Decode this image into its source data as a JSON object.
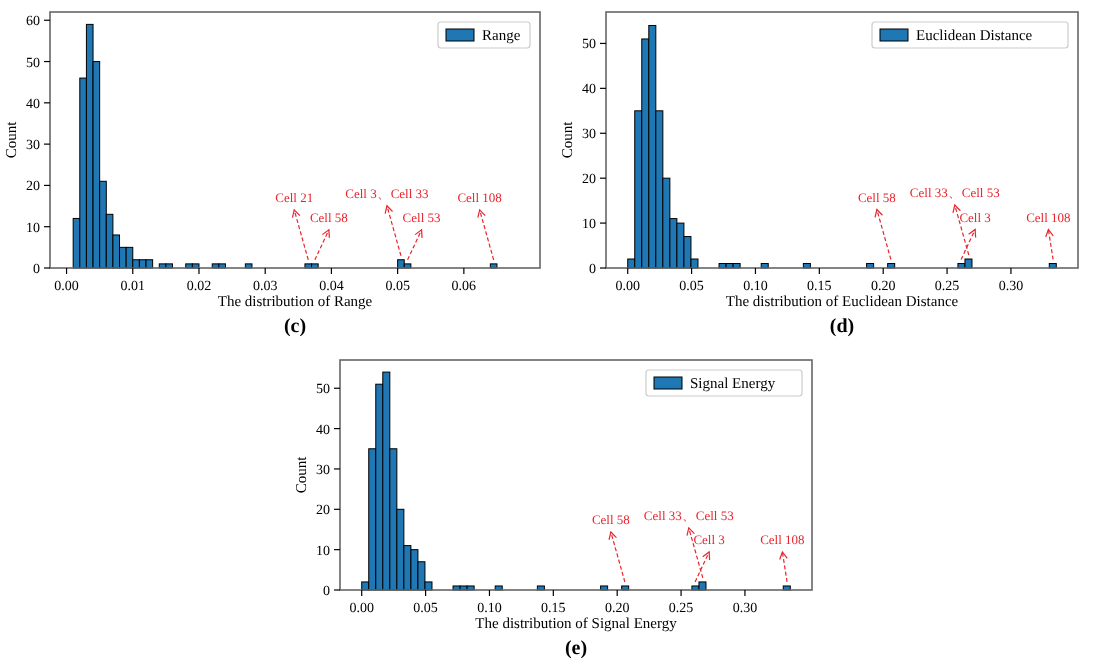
{
  "chart_data": [
    {
      "type": "histogram",
      "title": "(c)",
      "xlabel": "The distribution of Range",
      "ylabel": "Count",
      "legend": "top right",
      "grid": false,
      "series": [
        {
          "name": "Range",
          "color": "#1f77b4",
          "values": [
            12,
            46,
            59,
            50,
            21,
            13,
            8,
            5,
            5,
            2,
            2,
            2,
            0,
            1,
            1,
            0,
            0,
            1,
            1,
            0,
            0,
            1,
            1,
            0,
            0,
            0,
            1,
            0,
            0,
            0,
            0,
            0,
            0,
            0,
            0,
            1,
            1,
            0,
            0,
            0,
            0,
            0,
            0,
            0,
            0,
            0,
            0,
            0,
            0,
            2,
            1,
            0,
            0,
            0,
            0,
            0,
            0,
            0,
            0,
            0,
            0,
            0,
            0,
            1
          ]
        }
      ],
      "bins": [
        0.001,
        0.002,
        0.003,
        0.004,
        0.005,
        0.006,
        0.007,
        0.008,
        0.009,
        0.01,
        0.011,
        0.012,
        0.013,
        0.014,
        0.015,
        0.016,
        0.017,
        0.018,
        0.019,
        0.02,
        0.021,
        0.022,
        0.023,
        0.024,
        0.025,
        0.026,
        0.027,
        0.028,
        0.029,
        0.03,
        0.031,
        0.032,
        0.033,
        0.034,
        0.035,
        0.036,
        0.037,
        0.038,
        0.039,
        0.04,
        0.041,
        0.042,
        0.043,
        0.044,
        0.045,
        0.046,
        0.047,
        0.048,
        0.049,
        0.05,
        0.051,
        0.052,
        0.053,
        0.054,
        0.055,
        0.056,
        0.057,
        0.058,
        0.059,
        0.06,
        0.061,
        0.062,
        0.063,
        0.064,
        0.065
      ],
      "xlim": [
        -0.0025,
        0.0715
      ],
      "ylim": [
        0,
        62
      ],
      "xticks": [
        {
          "value": 0,
          "label": "0.00"
        },
        {
          "value": 0.01,
          "label": "0.01"
        },
        {
          "value": 0.02,
          "label": "0.02"
        },
        {
          "value": 0.03,
          "label": "0.03"
        },
        {
          "value": 0.04,
          "label": "0.04"
        },
        {
          "value": 0.05,
          "label": "0.05"
        },
        {
          "value": 0.06,
          "label": "0.06"
        }
      ],
      "yticks": [
        0,
        10,
        20,
        30,
        40,
        50,
        60
      ],
      "annotations": [
        {
          "text": "Cell 21",
          "x": 0.0365,
          "y": 1
        },
        {
          "text": "Cell 58",
          "x": 0.0375,
          "y": 1
        },
        {
          "text": "Cell 3、Cell 33",
          "x": 0.0505,
          "y": 2
        },
        {
          "text": "Cell 53",
          "x": 0.0515,
          "y": 1
        },
        {
          "text": "Cell 108",
          "x": 0.0645,
          "y": 1
        }
      ]
    },
    {
      "type": "histogram",
      "title": "(d)",
      "xlabel": "The distribution of Euclidean Distance",
      "ylabel": "Count",
      "legend": "top right",
      "grid": false,
      "series": [
        {
          "name": "Euclidean Distance",
          "color": "#1f77b4",
          "values": [
            2,
            35,
            51,
            54,
            35,
            20,
            11,
            10,
            7,
            2,
            0,
            0,
            0,
            1,
            1,
            1,
            0,
            0,
            0,
            1,
            0,
            0,
            0,
            0,
            0,
            1,
            0,
            0,
            0,
            0,
            0,
            0,
            0,
            0,
            1,
            0,
            0,
            1,
            0,
            0,
            0,
            0,
            0,
            0,
            0,
            0,
            0,
            1,
            2,
            0,
            0,
            0,
            0,
            0,
            0,
            0,
            0,
            0,
            0,
            0,
            1
          ]
        }
      ],
      "bins": [
        0,
        0.0055,
        0.011,
        0.0165,
        0.022,
        0.0275,
        0.033,
        0.0385,
        0.044,
        0.0495,
        0.055,
        0.0605,
        0.066,
        0.0715,
        0.077,
        0.0825,
        0.088,
        0.0935,
        0.099,
        0.1045,
        0.11,
        0.1155,
        0.121,
        0.1265,
        0.132,
        0.1375,
        0.143,
        0.1485,
        0.154,
        0.1595,
        0.165,
        0.1705,
        0.176,
        0.1815,
        0.187,
        0.1925,
        0.198,
        0.2035,
        0.209,
        0.2145,
        0.22,
        0.2255,
        0.231,
        0.2365,
        0.242,
        0.2475,
        0.253,
        0.2585,
        0.264,
        0.2695,
        0.275,
        0.2805,
        0.286,
        0.2915,
        0.297,
        0.3025,
        0.308,
        0.3135,
        0.319,
        0.3245,
        0.33,
        0.3355
      ],
      "xlim": [
        -0.017,
        0.3525
      ],
      "ylim": [
        0,
        57
      ],
      "xticks": [
        {
          "value": 0,
          "label": "0.00"
        },
        {
          "value": 0.05,
          "label": "0.05"
        },
        {
          "value": 0.1,
          "label": "0.10"
        },
        {
          "value": 0.15,
          "label": "0.15"
        },
        {
          "value": 0.2,
          "label": "0.20"
        },
        {
          "value": 0.25,
          "label": "0.25"
        },
        {
          "value": 0.3,
          "label": "0.30"
        }
      ],
      "yticks": [
        0,
        10,
        20,
        30,
        40,
        50
      ],
      "annotations": [
        {
          "text": "Cell 58",
          "x": 0.206,
          "y": 1
        },
        {
          "text": "Cell 3",
          "x": 0.261,
          "y": 1
        },
        {
          "text": "Cell 33、Cell 53",
          "x": 0.267,
          "y": 2
        },
        {
          "text": "Cell 108",
          "x": 0.333,
          "y": 1
        }
      ]
    },
    {
      "type": "histogram",
      "title": "(e)",
      "xlabel": "The distribution of Signal Energy",
      "ylabel": "Count",
      "legend": "top right",
      "grid": false,
      "series": [
        {
          "name": "Signal Energy",
          "color": "#1f77b4",
          "values": [
            2,
            35,
            51,
            54,
            35,
            20,
            11,
            10,
            7,
            2,
            0,
            0,
            0,
            1,
            1,
            1,
            0,
            0,
            0,
            1,
            0,
            0,
            0,
            0,
            0,
            1,
            0,
            0,
            0,
            0,
            0,
            0,
            0,
            0,
            1,
            0,
            0,
            1,
            0,
            0,
            0,
            0,
            0,
            0,
            0,
            0,
            0,
            1,
            2,
            0,
            0,
            0,
            0,
            0,
            0,
            0,
            0,
            0,
            0,
            0,
            1
          ]
        }
      ],
      "bins": [
        0,
        0.0055,
        0.011,
        0.0165,
        0.022,
        0.0275,
        0.033,
        0.0385,
        0.044,
        0.0495,
        0.055,
        0.0605,
        0.066,
        0.0715,
        0.077,
        0.0825,
        0.088,
        0.0935,
        0.099,
        0.1045,
        0.11,
        0.1155,
        0.121,
        0.1265,
        0.132,
        0.1375,
        0.143,
        0.1485,
        0.154,
        0.1595,
        0.165,
        0.1705,
        0.176,
        0.1815,
        0.187,
        0.1925,
        0.198,
        0.2035,
        0.209,
        0.2145,
        0.22,
        0.2255,
        0.231,
        0.2365,
        0.242,
        0.2475,
        0.253,
        0.2585,
        0.264,
        0.2695,
        0.275,
        0.2805,
        0.286,
        0.2915,
        0.297,
        0.3025,
        0.308,
        0.3135,
        0.319,
        0.3245,
        0.33,
        0.3355
      ],
      "xlim": [
        -0.017,
        0.3525
      ],
      "ylim": [
        0,
        57
      ],
      "xticks": [
        {
          "value": 0,
          "label": "0.00"
        },
        {
          "value": 0.05,
          "label": "0.05"
        },
        {
          "value": 0.1,
          "label": "0.10"
        },
        {
          "value": 0.15,
          "label": "0.15"
        },
        {
          "value": 0.2,
          "label": "0.20"
        },
        {
          "value": 0.25,
          "label": "0.25"
        },
        {
          "value": 0.3,
          "label": "0.30"
        }
      ],
      "yticks": [
        0,
        10,
        20,
        30,
        40,
        50
      ],
      "annotations": [
        {
          "text": "Cell 58",
          "x": 0.206,
          "y": 1
        },
        {
          "text": "Cell 3",
          "x": 0.261,
          "y": 1
        },
        {
          "text": "Cell 33、Cell 53",
          "x": 0.267,
          "y": 2
        },
        {
          "text": "Cell 108",
          "x": 0.333,
          "y": 1
        }
      ]
    }
  ]
}
